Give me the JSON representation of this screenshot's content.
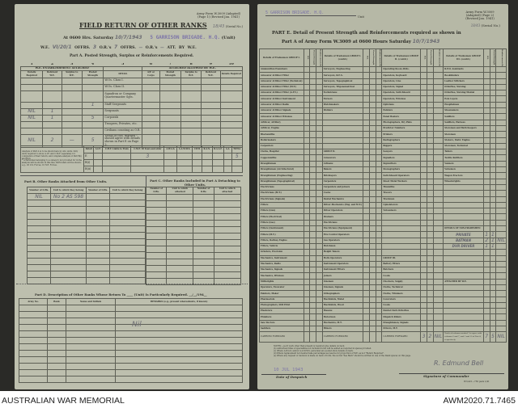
{
  "left": {
    "form_id": "Army Form W.3009 (Adapted) (Page 1) (Revised Jan. 1941)",
    "serial": "18/43",
    "serial_label": "(Serial No.)",
    "title": "FIELD RETURN OF OTHER RANKS",
    "line1": {
      "prefix": "At 0600 Hrs. Saturday",
      "date": "10/7/1943",
      "unit": "5 GARRISON BRIGADE. H.Q.",
      "unit_label": "(Unit)"
    },
    "line2": {
      "we_label": "W.E.",
      "we": "VI/20/1",
      "offrs_label": "OFFRS.",
      "offrs": "3",
      "ors_label": "O.R.'s",
      "ors": "7",
      "offrs2": "—",
      "ors2": "—",
      "att": "ATT. BY W.E."
    },
    "part_a": "Part A. Posted Strength, Surplus or Reinforcements Required.",
    "col_numbers": [
      "1",
      "2",
      "3",
      "4",
      "5",
      "6",
      "7",
      "8",
      "9",
      "10"
    ],
    "group_left": "W.E. ESTABLISHMENT ATTACHED",
    "group_right": "ATTACHED ALLOWED BY W.E.",
    "col_heads": [
      "Details Required",
      "Deficient W.E.",
      "Surplus to W.E.",
      "Posted Strength",
      "DETAIL",
      "A/E or Corps",
      "Posted Strength",
      "Surplus to W.E.",
      "Deficient W.E.",
      "Details Required"
    ],
    "rows": [
      {
        "detail": "W.Os. Class I.",
        "v": [
          "",
          "",
          "",
          ""
        ]
      },
      {
        "detail": "W.Os. Class II.",
        "v": [
          "",
          "",
          "",
          ""
        ]
      },
      {
        "detail": "Squadron or Company Quartermaster Sgts.",
        "v": [
          "",
          "",
          "",
          ""
        ]
      },
      {
        "detail": "Staff Sergeants",
        "v": [
          "",
          "",
          "",
          "1"
        ]
      },
      {
        "detail": "Sergeants",
        "v": [
          "NIL",
          "1",
          "",
          ""
        ]
      },
      {
        "detail": "Corporals",
        "v": [
          "NIL",
          "1",
          "",
          "5"
        ]
      },
      {
        "detail": "Troopers, Privates, etc.",
        "v": [
          "",
          "",
          "",
          ""
        ]
      },
      {
        "detail": "Civilians counting as O.R.",
        "v": [
          "",
          "",
          "",
          ""
        ]
      },
      {
        "detail": "Totals of cols. marked * should agree with details shown in Part E on Page 2.",
        "v": [
          "NIL",
          "2",
          "—",
          "5"
        ]
      }
    ],
    "analysis_note": "Analysis of Part A is to be shown here by ALL units. Only units required to show A.I.F. and C.M.F. separately for completion of their return, and complete analysis of Part B(i) and B(ii).",
    "analysis_note2": "* A Personnel belonging to a category not provided for in the analysis will be shown in this line. Particulars will be shown, e.g., 20 U.S. Forces, 10 N.E. Forces.",
    "summary_heads": [
      "Detail",
      "A.I.F.",
      "C.M.F. Liable to Train",
      "C.M.F. 18 Years and older",
      "A.W.A.S.",
      "A.A.M.W.S.",
      "CIVIL",
      "R.A.N.",
      "R.A.A.F.",
      "A.A.",
      "TOTAL"
    ],
    "summary_rows": [
      {
        "label": "E",
        "v": [
          "",
          "",
          "3",
          "",
          "",
          "",
          "",
          "",
          "",
          "5"
        ]
      },
      {
        "label": "R(i)",
        "v": [
          "",
          "",
          "",
          "",
          "",
          "",
          "",
          "",
          "",
          ""
        ]
      },
      {
        "label": "R(ii)",
        "v": [
          "",
          "",
          "",
          "",
          "",
          "",
          "",
          "",
          "",
          ""
        ]
      }
    ],
    "part_b": "Part B. Other Ranks Attached from Other Units.",
    "part_b_heads": [
      "Number of O.Rs.",
      "Unit to which they belong",
      "Number of O.Rs.",
      "Unit to which they belong"
    ],
    "part_b_entry": [
      "NIL",
      "No 2 AS 598"
    ],
    "part_c": "Part C. Other Ranks Included in Part A Detaching to Other Units.",
    "part_c_heads": [
      "Number of O.Rs.",
      "Unit to which attached",
      "Number of O.Rs.",
      "Unit to which attached"
    ],
    "part_d": "Part D. Description of Other Ranks Whose Return To ____ (Unit) Is Particularly Required. __/__/194__",
    "part_d_heads": [
      "Army No.",
      "Rank",
      "Name and Initials",
      "REMARKS (e.g., present whereabouts, if known)"
    ],
    "part_d_entry": "Nil"
  },
  "right": {
    "unit": "5 GARRISON BRIGADE. H.Q.",
    "unit_label": "Unit",
    "form_id": "Army Form W.3009 (Adapted) (Page 2) (Revised Jan. 1941)",
    "serial": "18/43",
    "serial_label": "(Serial No.)",
    "heading1": "PART E.  Detail of Present Strength and Reinforcements required as shown in",
    "heading2": "Part A of Army Form W.3009 at 0600 Hours Saturday",
    "heading_date": "10/7/1943",
    "group_heads": [
      "Details of Tradesmen GROUP I.",
      "Details of Tradesmen GROUP I. (contd.)",
      "Details of Tradesmen GROUP II. (contd.)",
      "Details of Tradesmen GROUP III. (contd.)"
    ],
    "sub_heads": [
      "W.E.",
      "Posted Strength",
      "Reinforcements Required"
    ],
    "columns": [
      [
        "Ammunition Examiners",
        "Armourer Artificer Fitter",
        "Armourer Artificer Fitter (Technical)",
        "Armourer Artificer Fitter (M.T.)",
        "Armourer Artificer Fitter (A.F.V.)",
        "Armourer Artificer Instrument",
        "Armourer Artificer Radio",
        "Armourer Artificer Signals",
        "Armourer Artificer Wireless",
        "Artificer, Artillery",
        "Artificer, Engine",
        "Blacksmiths",
        "Boilermakers",
        "Carpenters",
        "Clerks, Hospital",
        "Coppersmiths",
        "Draughtsmen",
        "Draughtsmen (Architectural)",
        "Draughtsmen (Engineering)",
        "Draughtsmen (Topographical)",
        "Electricians",
        "Electricians (M.T.)",
        "Electricians (Signals)",
        "Fitters",
        "Fitters (Gun)",
        "Fitters (Electrical)",
        "Fitters (Gas)",
        "Fitters (Instrument)",
        "Fitters (M.T.)",
        "Fitters, Railway Engine",
        "Fitters, Vehicle",
        "Grinders, Precision",
        "Mechanics, Instrument",
        "Mechanics, Radio",
        "Mechanics, Signals",
        "Mechanics, Wireless",
        "Millwrights",
        "Operators, Excavator",
        "Painters, Maker",
        "Pharmacists",
        "Photographers, Still Print",
        "Plasterers",
        "Plumbers",
        "Saw Doctors",
        "Saddlers"
      ],
      [
        "Surveyors, Engineering",
        "Surveyors, R.E.S.",
        "Surveyors, Topographical",
        "Surveyors, Trigonometrical",
        "Technicians",
        "Turners",
        "Watchmakers",
        "Welders",
        "",
        "",
        "",
        "",
        "",
        "",
        "GROUP II.",
        "Armourers",
        "Artisans",
        "Bakers",
        "Bricklayers",
        "Carpenters",
        "Carpenters and Joiners",
        "Cooks",
        "Dental Mechanics",
        "Driver-Mechanics (Eng. and M.T.)",
        "Driver Operators",
        "Drainers",
        "Electricians",
        "Electricians (Equipment)",
        "Fire Control Operators",
        "Gas Operators",
        "Hutchmen",
        "Height Takers",
        "Hollo Operators",
        "Instrument Operators",
        "Instrument Fitters",
        "Joiners",
        "Linemen",
        "Linemen, Signals",
        "Lithographers",
        "Machinists, Metal",
        "Machinists, Wood",
        "Masons",
        "Motormen",
        "Mechanics, M.T.",
        "Miners"
      ],
      [
        "Operating Room Attds.",
        "Operators, Keyboard",
        "Operators, Line",
        "Operators, Signal",
        "Operators, Switchboard",
        "Operators, Wireless",
        "Opticians",
        "Painters",
        "Panel Beaters",
        "Photographers, Dry Plate",
        "Predictor Numbers",
        "Printers",
        "Radiographers",
        "Riggers",
        "Sawyers",
        "Signallers",
        "Signwriters",
        "Stenographers",
        "Switchboard Operators",
        "Sheet Metal Workers",
        "Tinsmiths",
        "Tracers",
        "Trackmen",
        "Upholsterers",
        "Vulcanisers",
        "",
        "",
        "",
        "",
        "",
        "",
        "",
        "GROUP III.",
        "Battery Fitters",
        "Butchers",
        "Cooks",
        "Checkers, Supply",
        "Clerks, Technical",
        "Clerks, Trimmers",
        "Concreters",
        "Cooks",
        "Dental Clerk Orderlies",
        "Dispatch Riders",
        "Draughtsmen, Signals",
        "Drivers, M.T."
      ],
      [
        "R.P.O. Assistants",
        "Bookbinders",
        "Leather Stitchers",
        "Orderlies, Nursing",
        "Orderlies, Nursing Mental",
        "Pole Layers",
        "Hospitalmen",
        "Shoemakers",
        "Saddlers",
        "Saddlers, Harness",
        "Storemen and Bath Keepers",
        "Storemen",
        "Stokers, Static Engine",
        "Storemen, Technical",
        "Tailors",
        "Textile Refitters",
        "Vanners",
        "Valvemen",
        "Wagon Erectors",
        "Wheelwrights",
        "",
        "",
        "",
        "",
        "",
        "",
        "",
        "DETAILS OF NON-TRADESMEN",
        "",
        "",
        "",
        "",
        "",
        "",
        "",
        "",
        "ATTACHED BY W.E.",
        "",
        "",
        "",
        "",
        "",
        "",
        "",
        ""
      ]
    ],
    "handwritten": [
      {
        "col": 3,
        "row": 28,
        "text": "PRIVATE",
        "v": [
          "1",
          "1",
          ""
        ]
      },
      {
        "col": 3,
        "row": 29,
        "text": "BATMAN",
        "v": [
          "2",
          "1",
          "NIL"
        ]
      },
      {
        "col": 3,
        "row": 30,
        "text": "DVR DRIVER",
        "v": [
          "1",
          "1",
          ""
        ]
      }
    ],
    "carried_forward": "CARRIED FORWARD",
    "carried_values": [
      [
        "",
        "",
        ""
      ],
      [
        "",
        "",
        ""
      ],
      [
        "3",
        "2",
        "NIL"
      ],
      [
        "7",
        "5",
        "NIL"
      ]
    ],
    "totals_note": "Totals of columns marked * to agree with columns 6 and 7, and 1 and 10 of Part A, respectively.",
    "notes": [
      "NOTES:—(a) If work other than present is required give details on back.",
      "(b) Authorised titles of specialities not included in list will be added as required in spaces provided.",
      "(c) Where A.W.A.S. and/or A.A.M.W.S. personnel are posted show details on back.",
      "(d) Where replacement not desired take percentages as reserve for proportion of W.E. as not \"Return Required\".",
      "(e) Where any request or decision is made on back of form, the words \"See Back\" should be written in one of the blank spaces on this page."
    ],
    "despatch_date": "10 JUL 1943",
    "despatch_label": "Date of Despatch",
    "signature_label": "Signature of Commander",
    "signature": "R. Edmund Bell",
    "print_ref": "W.3,421—750 pads 1/41"
  },
  "footer": {
    "institution": "AUSTRALIAN WAR MEMORIAL",
    "accession": "AWM2020.71.7465"
  }
}
